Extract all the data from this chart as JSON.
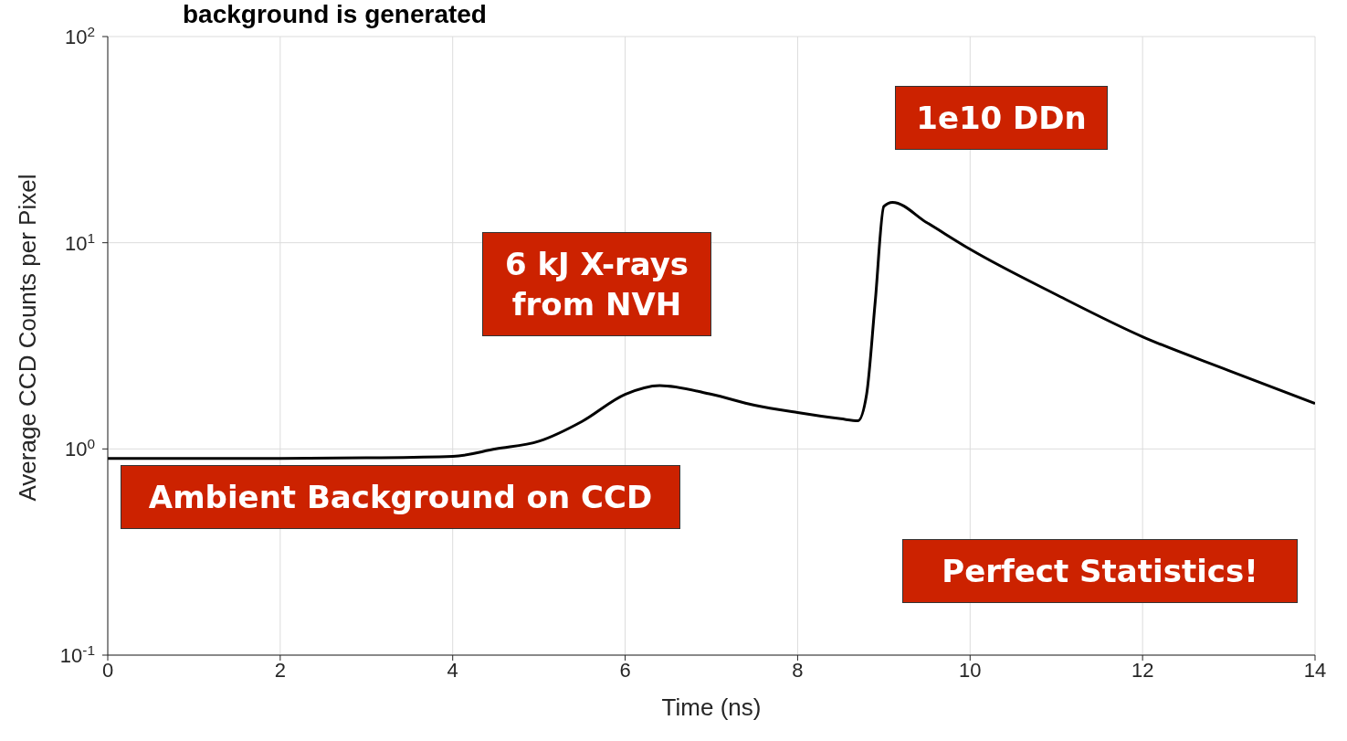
{
  "chart_data": {
    "type": "line",
    "title": "background is generated",
    "xlabel": "Time (ns)",
    "ylabel": "Average CCD Counts per Pixel",
    "x": [
      0,
      1,
      2,
      3,
      4,
      4.5,
      5,
      5.5,
      6,
      6.4,
      7,
      7.5,
      8,
      8.5,
      8.7,
      8.8,
      8.9,
      9,
      9.1,
      9.5,
      10,
      11,
      12,
      13,
      14
    ],
    "series": [
      {
        "color": "#000000",
        "values": [
          0.9,
          0.9,
          0.9,
          0.905,
          0.92,
          1.0,
          1.09,
          1.36,
          1.84,
          2.03,
          1.84,
          1.63,
          1.5,
          1.4,
          1.37,
          1.84,
          5.2,
          15,
          15.7,
          12.5,
          9.3,
          5.6,
          3.5,
          2.4,
          1.66
        ]
      }
    ],
    "xlim": [
      0,
      14
    ],
    "xticks": [
      0,
      2,
      4,
      6,
      8,
      10,
      12,
      14
    ],
    "ylim": [
      0.1,
      100
    ],
    "yticks": [
      {
        "value": 0.1,
        "label": "10$^{-1}$"
      },
      {
        "value": 1,
        "label": "10$^{0}$"
      },
      {
        "value": 10,
        "label": "10$^{1}$"
      },
      {
        "value": 100,
        "label": "10$^{2}$"
      }
    ],
    "log": "y",
    "grid": true,
    "marker": "none",
    "line_style": "solid",
    "annotations": [
      "1e10 DDn",
      "6 kJ X-rays from NVH",
      "Ambient Background on CCD",
      "Perfect Statistics!"
    ]
  }
}
